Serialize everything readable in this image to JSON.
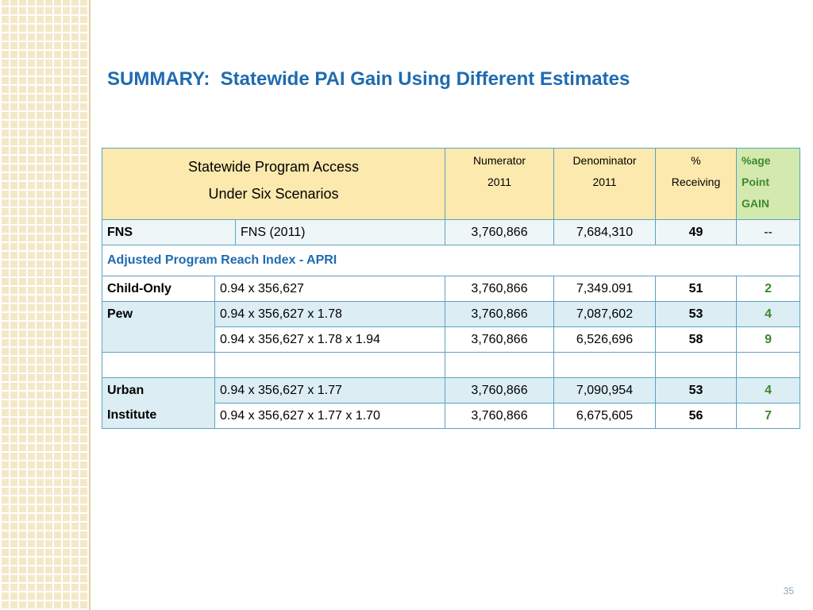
{
  "title": "SUMMARY:  Statewide PAI Gain Using Different Estimates",
  "table": {
    "header": {
      "scenario": [
        "Statewide Program Access",
        "Under Six Scenarios"
      ],
      "numerator": [
        "Numerator",
        "2011"
      ],
      "denominator": [
        "Denominator",
        "2011"
      ],
      "percent": [
        "%",
        "Receiving"
      ],
      "gain": [
        "%age",
        "Point",
        "GAIN"
      ]
    },
    "fns": {
      "label": "FNS",
      "formula": "FNS (2011)",
      "cells": [
        "3,760,866",
        "7,684,310",
        49,
        "--"
      ]
    },
    "apri_heading": "Adjusted Program Reach Index - APRI",
    "groups": [
      {
        "label": [
          "Child-Only"
        ],
        "rows": [
          {
            "formula": "0.94 x 356,627",
            "cells": [
              "3,760,866",
              "7,349.091",
              51,
              2
            ]
          }
        ]
      },
      {
        "label": [
          "Pew"
        ],
        "rows": [
          {
            "formula": "0.94 x 356,627 x  1.78",
            "cells": [
              "3,760,866",
              "7,087,602",
              53,
              4
            ]
          },
          {
            "formula": "0.94 x 356,627 x 1.78 x 1.94",
            "cells": [
              "3,760,866",
              "6,526,696",
              58,
              9
            ]
          }
        ]
      },
      {
        "label": [
          "Urban",
          "Institute"
        ],
        "rows": [
          {
            "formula": "0.94 x 356,627 x 1.77",
            "cells": [
              "3,760,866",
              "7,090,954",
              53,
              4
            ]
          },
          {
            "formula": "0.94 x 356,627 x 1.77 x 1.70",
            "cells": [
              "3,760,866",
              "6,675,605",
              56,
              7
            ]
          }
        ]
      }
    ]
  },
  "page_number": "35"
}
